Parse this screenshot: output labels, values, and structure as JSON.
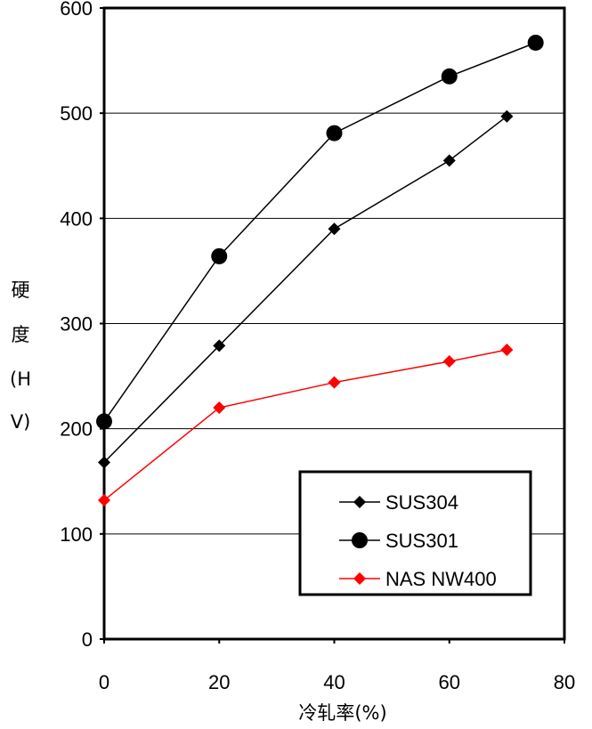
{
  "chart_data": {
    "type": "line",
    "xlabel": "冷轧率(%)",
    "ylabel": "硬度(HV)",
    "ylabel_lines": [
      "硬",
      "度",
      "(H",
      "V)"
    ],
    "xlim": [
      0,
      80
    ],
    "ylim": [
      0,
      600
    ],
    "x_ticks": [
      "0",
      "20",
      "40",
      "60",
      "80"
    ],
    "y_ticks": [
      "0",
      "100",
      "200",
      "300",
      "400",
      "500",
      "600"
    ],
    "grid": "horizontal",
    "legend_position": "bottom-right",
    "series": [
      {
        "name": "SUS304",
        "marker": "diamond",
        "color": "#000000",
        "x": [
          0,
          20,
          40,
          60,
          70
        ],
        "y": [
          168,
          279,
          390,
          455,
          497
        ]
      },
      {
        "name": "SUS301",
        "marker": "circle",
        "color": "#000000",
        "x": [
          0,
          20,
          40,
          60,
          75
        ],
        "y": [
          207,
          364,
          481,
          535,
          567
        ]
      },
      {
        "name": "NAS NW400",
        "marker": "diamond",
        "color": "#ff0000",
        "x": [
          0,
          20,
          40,
          60,
          70
        ],
        "y": [
          132,
          220,
          244,
          264,
          275
        ]
      }
    ]
  }
}
